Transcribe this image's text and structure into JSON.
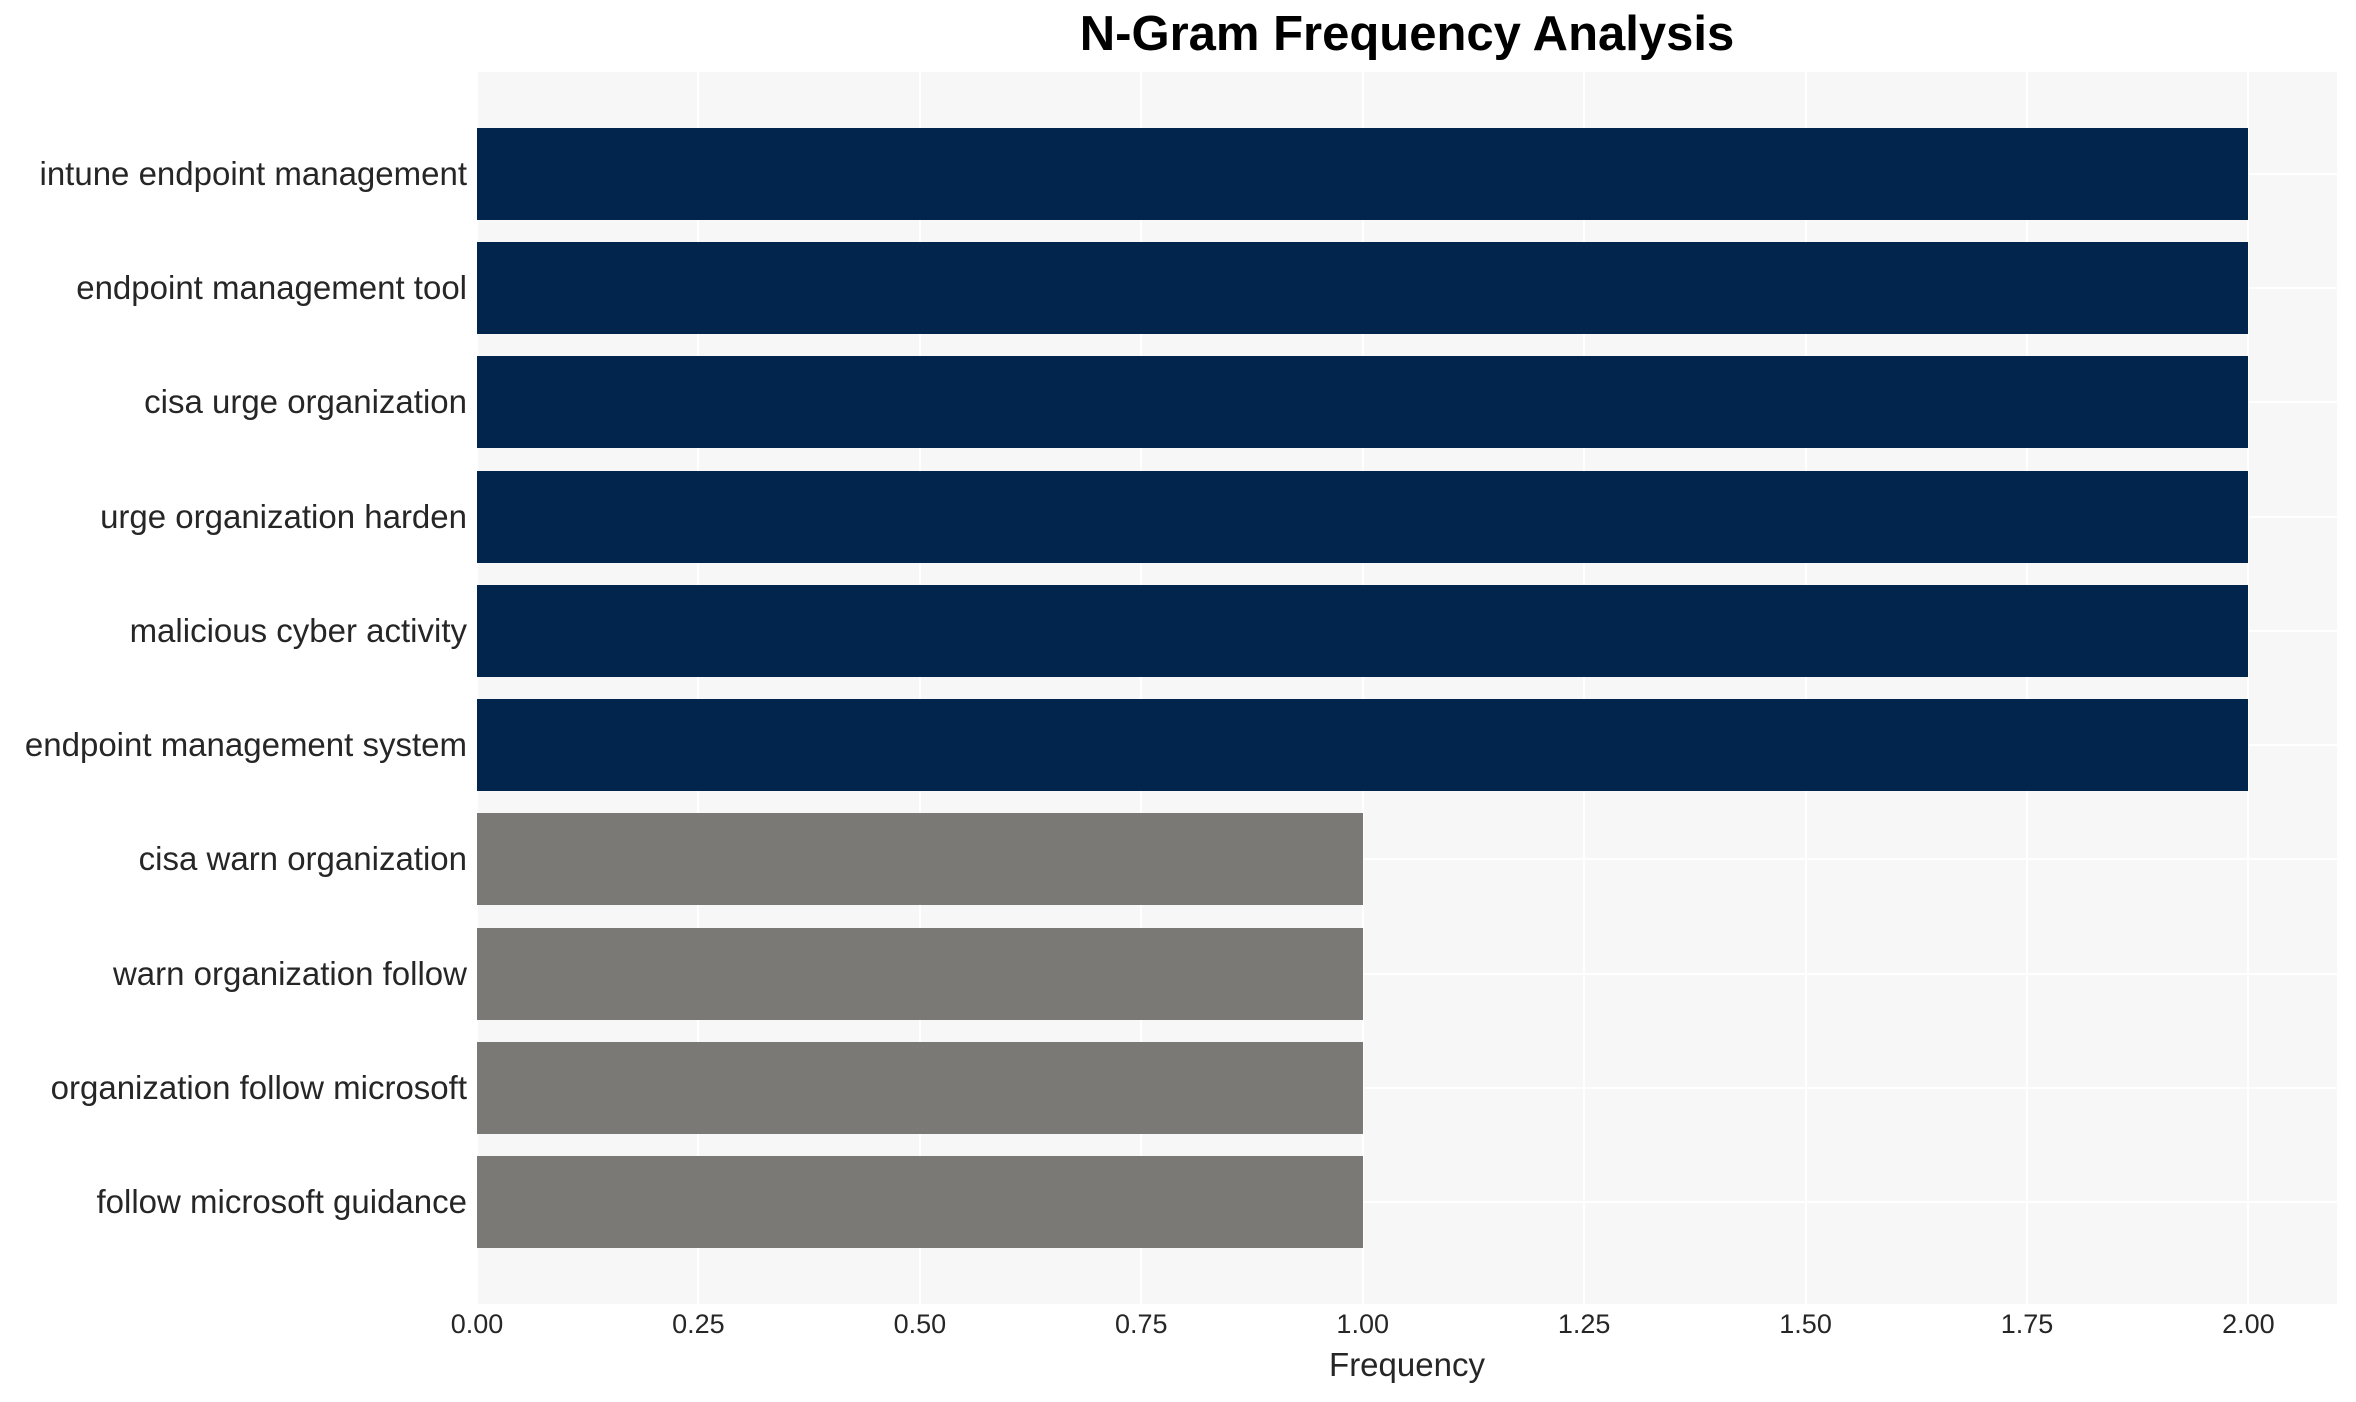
{
  "page": {
    "background": "#ffffff",
    "plot_background": "#f7f7f7",
    "gridline_color": "#ffffff",
    "text_color": "#262626",
    "title_color": "#000000"
  },
  "chart_data": {
    "type": "bar",
    "orientation": "horizontal",
    "title": "N-Gram Frequency Analysis",
    "xlabel": "Frequency",
    "ylabel": "",
    "categories": [
      "intune endpoint management",
      "endpoint management tool",
      "cisa urge organization",
      "urge organization harden",
      "malicious cyber activity",
      "endpoint management system",
      "cisa warn organization",
      "warn organization follow",
      "organization follow microsoft",
      "follow microsoft guidance"
    ],
    "values": [
      2,
      2,
      2,
      2,
      2,
      2,
      1,
      1,
      1,
      1
    ],
    "bar_colors": [
      "#02254d",
      "#02254d",
      "#02254d",
      "#02254d",
      "#02254d",
      "#02254d",
      "#7a7975",
      "#7a7975",
      "#7a7975",
      "#7a7975"
    ],
    "color_legend": {
      "frequency_2": "#02254d",
      "frequency_1": "#7a7975"
    },
    "xlim": [
      0,
      2.1
    ],
    "x_ticks": [
      0,
      0.25,
      0.5,
      0.75,
      1.0,
      1.25,
      1.5,
      1.75,
      2.0
    ],
    "x_tick_labels": [
      "0.00",
      "0.25",
      "0.50",
      "0.75",
      "1.00",
      "1.25",
      "1.50",
      "1.75",
      "2.00"
    ],
    "grid": true,
    "legend": false
  }
}
